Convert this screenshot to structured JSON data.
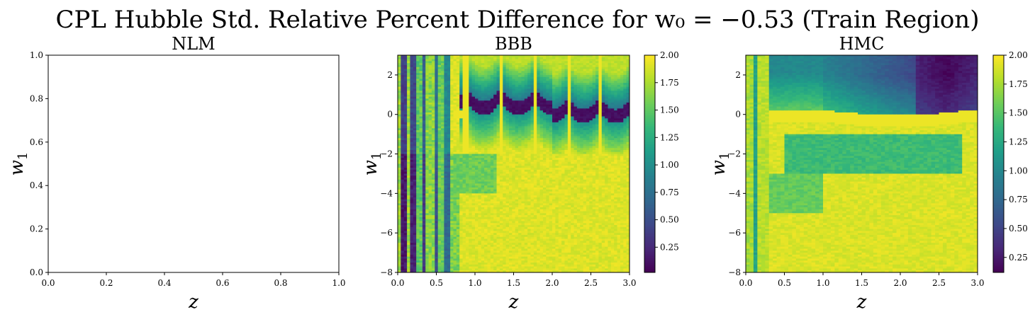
{
  "chart_data": {
    "type": "heatmap",
    "title": "CPL Hubble Std. Relative Percent Difference for w₀ = −0.53 (Train Region)",
    "panels": [
      {
        "title": "NLM",
        "type": "heatmap",
        "xlabel": "z",
        "ylabel_main": "w",
        "ylabel_sub": "1",
        "xlim": [
          0,
          1
        ],
        "ylim": [
          0,
          1
        ],
        "xticks": [
          0.0,
          0.2,
          0.4,
          0.6,
          0.8,
          1.0
        ],
        "yticks": [
          0.0,
          0.2,
          0.4,
          0.6,
          0.8,
          1.0
        ],
        "xtick_labels": [
          "0.0",
          "0.2",
          "0.4",
          "0.6",
          "0.8",
          "1.0"
        ],
        "ytick_labels": [
          "0.0",
          "0.2",
          "0.4",
          "0.6",
          "0.8",
          "1.0"
        ],
        "empty": true,
        "colorbar": false
      },
      {
        "title": "BBB",
        "type": "heatmap",
        "xlabel": "z",
        "ylabel_main": "w",
        "ylabel_sub": "1",
        "xlim": [
          0,
          3
        ],
        "ylim": [
          -8,
          3
        ],
        "xticks": [
          0.0,
          0.5,
          1.0,
          1.5,
          2.0,
          2.5,
          3.0
        ],
        "yticks": [
          -8,
          -6,
          -4,
          -2,
          0,
          2
        ],
        "xtick_labels": [
          "0.0",
          "0.5",
          "1.0",
          "1.5",
          "2.0",
          "2.5",
          "3.0"
        ],
        "ytick_labels": [
          "−8",
          "−6",
          "−4",
          "−2",
          "0",
          "2"
        ],
        "empty": false,
        "colorbar": true,
        "clim": [
          0.02,
          2.0
        ],
        "cbar_ticks": [
          0.25,
          0.5,
          0.75,
          1.0,
          1.25,
          1.5,
          1.75,
          2.0
        ],
        "cbar_tick_labels": [
          "0.25",
          "0.50",
          "0.75",
          "1.00",
          "1.25",
          "1.50",
          "1.75",
          "2.00"
        ],
        "grid_shape": [
          110,
          75
        ],
        "features": {
          "left_stripes": [
            {
              "z": [
                0.05,
                0.1
              ],
              "level": 0.15
            },
            {
              "z": [
                0.18,
                0.23
              ],
              "level": 0.2
            },
            {
              "z": [
                0.32,
                0.37
              ],
              "level": 0.35
            },
            {
              "z": [
                0.48,
                0.53
              ],
              "level": 0.5
            },
            {
              "z": [
                0.62,
                0.68
              ],
              "level": 0.7
            }
          ],
          "arc_centers_z": [
            0.67,
            1.11,
            1.56,
            2.0,
            2.41,
            2.82
          ],
          "arc_low_w1": 1.0,
          "ridge_w1": 0.0,
          "background_level": 1.9
        }
      },
      {
        "title": "HMC",
        "type": "heatmap",
        "xlabel": "z",
        "ylabel_main": "w",
        "ylabel_sub": "1",
        "xlim": [
          0,
          3
        ],
        "ylim": [
          -8,
          3
        ],
        "xticks": [
          0.0,
          0.5,
          1.0,
          1.5,
          2.0,
          2.5,
          3.0
        ],
        "yticks": [
          -8,
          -6,
          -4,
          -2,
          0,
          2
        ],
        "xtick_labels": [
          "0.0",
          "0.5",
          "1.0",
          "1.5",
          "2.0",
          "2.5",
          "3.0"
        ],
        "ytick_labels": [
          "−8",
          "−6",
          "−4",
          "−2",
          "0",
          "2"
        ],
        "empty": false,
        "colorbar": true,
        "clim": [
          0.12,
          2.0
        ],
        "cbar_ticks": [
          0.25,
          0.5,
          0.75,
          1.0,
          1.25,
          1.5,
          1.75,
          2.0
        ],
        "cbar_tick_labels": [
          "0.25",
          "0.50",
          "0.75",
          "1.00",
          "1.25",
          "1.50",
          "1.75",
          "2.00"
        ],
        "grid_shape": [
          110,
          60
        ],
        "features": {
          "dark_region_z": [
            1.0,
            3.0
          ],
          "darkest_z": 2.6,
          "ridge_w1": -0.2,
          "mid_band_w1": [
            -3,
            -1
          ],
          "background_level": 1.9
        }
      }
    ],
    "colormap": "viridis",
    "colors": {
      "viridis_stops": [
        "#440154",
        "#482878",
        "#3e4989",
        "#31688e",
        "#26828e",
        "#1f9e89",
        "#35b779",
        "#6ece58",
        "#b5de2b",
        "#fde725"
      ]
    }
  }
}
